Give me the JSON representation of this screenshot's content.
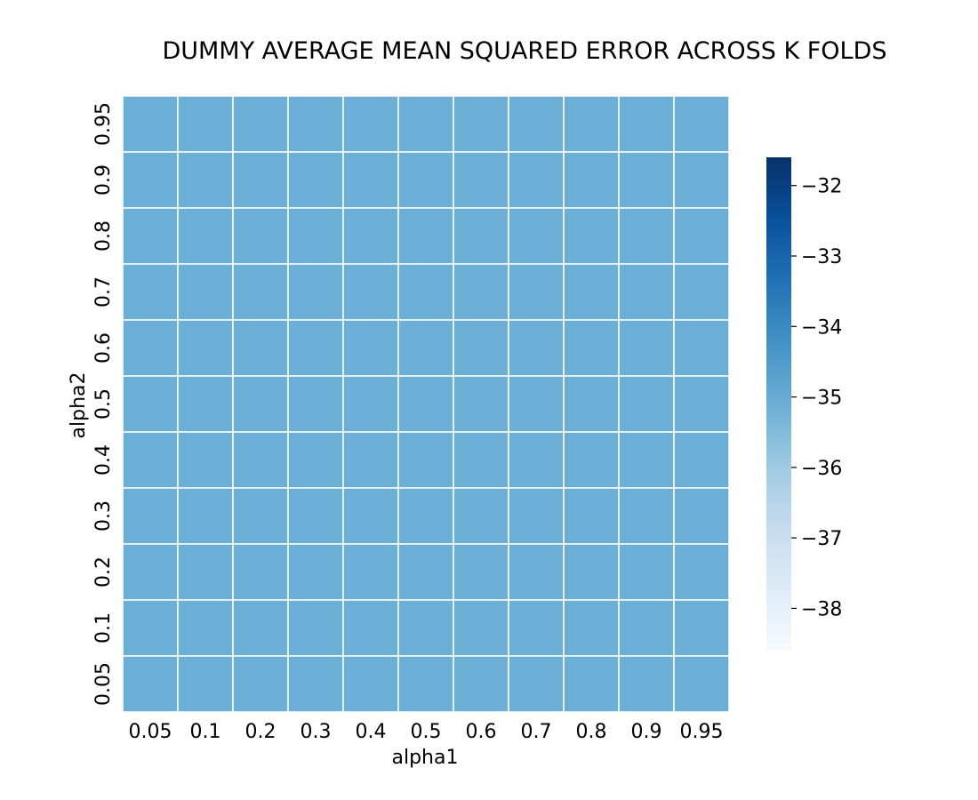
{
  "chart_data": {
    "type": "heatmap",
    "title": "DUMMY AVERAGE MEAN SQUARED ERROR ACROSS K FOLDS",
    "xlabel": "alpha1",
    "ylabel": "alpha2",
    "x_categories": [
      "0.05",
      "0.1",
      "0.2",
      "0.3",
      "0.4",
      "0.5",
      "0.6",
      "0.7",
      "0.8",
      "0.9",
      "0.95"
    ],
    "y_categories": [
      "0.95",
      "0.9",
      "0.8",
      "0.7",
      "0.6",
      "0.5",
      "0.4",
      "0.3",
      "0.2",
      "0.1",
      "0.05"
    ],
    "values": [
      [
        -35.1,
        -35.1,
        -35.1,
        -35.1,
        -35.1,
        -35.1,
        -35.1,
        -35.1,
        -35.1,
        -35.1,
        -35.1
      ],
      [
        -35.1,
        -35.1,
        -35.1,
        -35.1,
        -35.1,
        -35.1,
        -35.1,
        -35.1,
        -35.1,
        -35.1,
        -35.1
      ],
      [
        -35.1,
        -35.1,
        -35.1,
        -35.1,
        -35.1,
        -35.1,
        -35.1,
        -35.1,
        -35.1,
        -35.1,
        -35.1
      ],
      [
        -35.1,
        -35.1,
        -35.1,
        -35.1,
        -35.1,
        -35.1,
        -35.1,
        -35.1,
        -35.1,
        -35.1,
        -35.1
      ],
      [
        -35.1,
        -35.1,
        -35.1,
        -35.1,
        -35.1,
        -35.1,
        -35.1,
        -35.1,
        -35.1,
        -35.1,
        -35.1
      ],
      [
        -35.1,
        -35.1,
        -35.1,
        -35.1,
        -35.1,
        -35.1,
        -35.1,
        -35.1,
        -35.1,
        -35.1,
        -35.1
      ],
      [
        -35.1,
        -35.1,
        -35.1,
        -35.1,
        -35.1,
        -35.1,
        -35.1,
        -35.1,
        -35.1,
        -35.1,
        -35.1
      ],
      [
        -35.1,
        -35.1,
        -35.1,
        -35.1,
        -35.1,
        -35.1,
        -35.1,
        -35.1,
        -35.1,
        -35.1,
        -35.1
      ],
      [
        -35.1,
        -35.1,
        -35.1,
        -35.1,
        -35.1,
        -35.1,
        -35.1,
        -35.1,
        -35.1,
        -35.1,
        -35.1
      ],
      [
        -35.1,
        -35.1,
        -35.1,
        -35.1,
        -35.1,
        -35.1,
        -35.1,
        -35.1,
        -35.1,
        -35.1,
        -35.1
      ],
      [
        -35.1,
        -35.1,
        -35.1,
        -35.1,
        -35.1,
        -35.1,
        -35.1,
        -35.1,
        -35.1,
        -35.1,
        -35.1
      ]
    ],
    "colorbar": {
      "colormap": "Blues",
      "vmin": -38.6,
      "vmax": -31.6,
      "ticks": [
        -32,
        -33,
        -34,
        -35,
        -36,
        -37,
        -38
      ],
      "tick_labels": [
        "−32",
        "−33",
        "−34",
        "−35",
        "−36",
        "−37",
        "−38"
      ]
    },
    "grid": true,
    "cell_border_color": "#ffffff"
  }
}
